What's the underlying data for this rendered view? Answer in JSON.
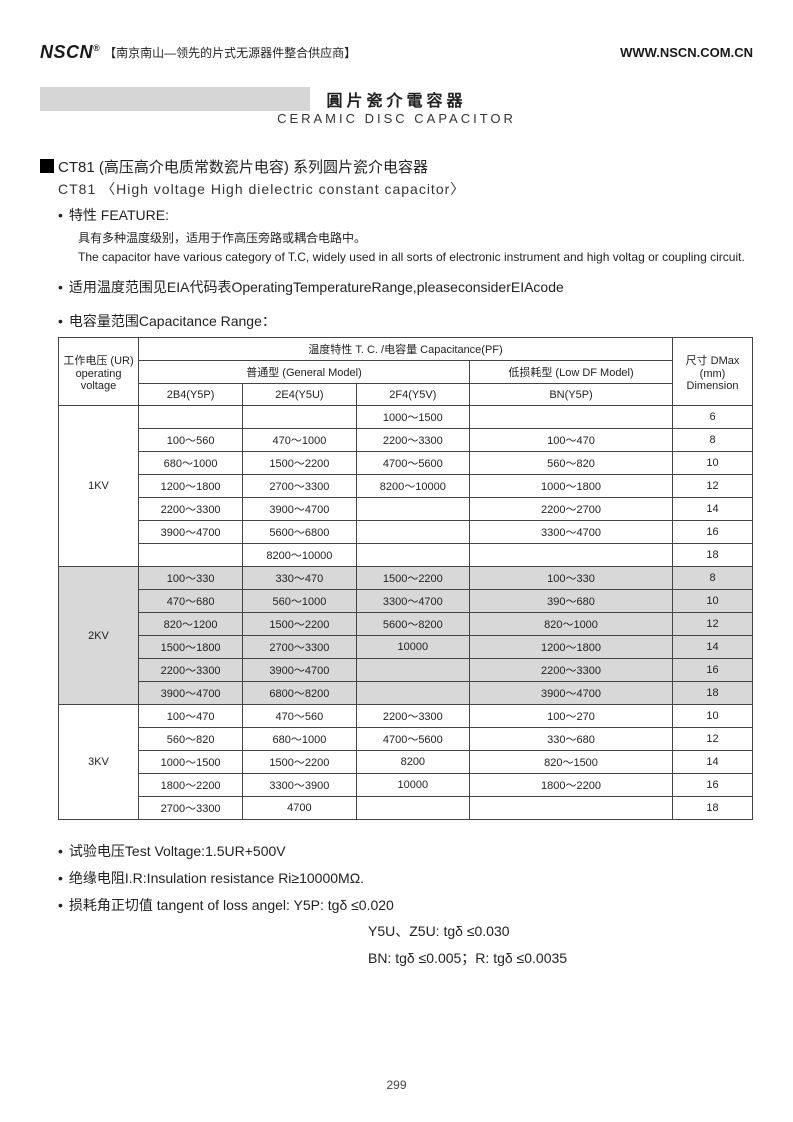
{
  "header": {
    "brand": "NSCN",
    "reg": "®",
    "tagline": "【南京南山—领先的片式无源器件整合供应商】",
    "url": "WWW.NSCN.COM.CN"
  },
  "title": {
    "cn": "圓片瓷介電容器",
    "en": "CERAMIC DISC CAPACITOR"
  },
  "section": {
    "heading_cn": "CT81 (高压高介电质常数瓷片电容) 系列圆片瓷介电容器",
    "heading_en": "CT81 〈High voltage High dielectric constant capacitor〉",
    "feature_label": "特性 FEATURE:",
    "feature_cn": "具有多种温度级别，适用于作高压旁路或耦合电路中。",
    "feature_en": "The capacitor have various category of T.C, widely used in all sorts of electronic instrument and high voltag or coupling circuit.",
    "temp_range": "适用温度范围见EIA代码表OperatingTemperatureRange,pleaseconsiderEIAcode",
    "cap_range_label": "电容量范围Capacitance Range："
  },
  "table": {
    "header": {
      "voltage": "工作电压 (UR) operating voltage",
      "tc": "温度特性 T. C. /电容量 Capacitance(PF)",
      "general": "普通型 (General Model)",
      "lowdf": "低损耗型 (Low DF Model)",
      "dim": "尺寸 DMax (mm) Dimension",
      "c1": "2B4(Y5P)",
      "c2": "2E4(Y5U)",
      "c3": "2F4(Y5V)",
      "c4": "BN(Y5P)"
    },
    "groups": [
      {
        "voltage": "1KV",
        "shade": false,
        "rows": [
          [
            "",
            "",
            "1000～1500",
            "",
            "6"
          ],
          [
            "100～560",
            "470～1000",
            "2200～3300",
            "100～470",
            "8"
          ],
          [
            "680～1000",
            "1500～2200",
            "4700～5600",
            "560～820",
            "10"
          ],
          [
            "1200～1800",
            "2700～3300",
            "8200～10000",
            "1000～1800",
            "12"
          ],
          [
            "2200～3300",
            "3900～4700",
            "",
            "2200～2700",
            "14"
          ],
          [
            "3900～4700",
            "5600～6800",
            "",
            "3300～4700",
            "16"
          ],
          [
            "",
            "8200～10000",
            "",
            "",
            "18"
          ]
        ]
      },
      {
        "voltage": "2KV",
        "shade": true,
        "rows": [
          [
            "100～330",
            "330～470",
            "1500～2200",
            "100～330",
            "8"
          ],
          [
            "470～680",
            "560～1000",
            "3300～4700",
            "390～680",
            "10"
          ],
          [
            "820～1200",
            "1500～2200",
            "5600～8200",
            "820～1000",
            "12"
          ],
          [
            "1500～1800",
            "2700～3300",
            "10000",
            "1200～1800",
            "14"
          ],
          [
            "2200～3300",
            "3900～4700",
            "",
            "2200～3300",
            "16"
          ],
          [
            "3900～4700",
            "6800～8200",
            "",
            "3900～4700",
            "18"
          ]
        ]
      },
      {
        "voltage": "3KV",
        "shade": false,
        "rows": [
          [
            "100～470",
            "470～560",
            "2200～3300",
            "100～270",
            "10"
          ],
          [
            "560～820",
            "680～1000",
            "4700～5600",
            "330～680",
            "12"
          ],
          [
            "1000～1500",
            "1500～2200",
            "8200",
            "820～1500",
            "14"
          ],
          [
            "1800～2200",
            "3300～3900",
            "10000",
            "1800～2200",
            "16"
          ],
          [
            "2700～3300",
            "4700",
            "",
            "",
            "18"
          ]
        ]
      }
    ]
  },
  "specs": {
    "test_voltage": "试验电压Test Voltage:1.5UR+500V",
    "insulation": "绝缘电阻I.R:Insulation resistance Ri≥10000MΩ.",
    "tangent1": "损耗角正切值 tangent of loss angel: Y5P:  tgδ ≤0.020",
    "tangent2": "Y5U、Z5U: tgδ ≤0.030",
    "tangent3": "BN: tgδ ≤0.005；R: tgδ ≤0.0035"
  },
  "page": "299"
}
